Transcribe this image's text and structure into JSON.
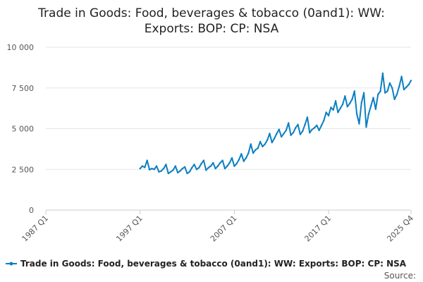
{
  "chart_data": {
    "type": "line",
    "title": "Trade in Goods: Food, beverages & tobacco (0and1): WW: Exports: BOP: CP: NSA",
    "title_lines": [
      "Trade in Goods: Food, beverages & tobacco (0and1): WW:",
      "Exports: BOP: CP: NSA"
    ],
    "xlabel": "",
    "ylabel": "",
    "ylim": [
      0,
      10000
    ],
    "yticks": [
      0,
      2500,
      5000,
      7500,
      10000
    ],
    "ytick_labels": [
      "0",
      "2 500",
      "5 000",
      "7 500",
      "10 000"
    ],
    "xlim": [
      1987.0,
      2025.75
    ],
    "xticks": [
      1987.0,
      1997.0,
      2007.0,
      2017.0,
      2025.75
    ],
    "xtick_labels": [
      "1987 Q1",
      "1997 Q1",
      "2007 Q1",
      "2017 Q1",
      "2025 Q4"
    ],
    "grid": true,
    "legend_position": "bottom",
    "series": [
      {
        "name": "Trade in Goods: Food, beverages & tobacco (0and1): WW: Exports: BOP: CP: NSA",
        "color": "#0a7fc2",
        "start": 1997.0,
        "step": 0.25,
        "values": [
          2550,
          2700,
          2620,
          3050,
          2480,
          2550,
          2500,
          2700,
          2350,
          2400,
          2550,
          2800,
          2250,
          2350,
          2450,
          2700,
          2300,
          2400,
          2550,
          2650,
          2250,
          2350,
          2600,
          2800,
          2500,
          2600,
          2850,
          3050,
          2450,
          2600,
          2700,
          2900,
          2550,
          2700,
          2900,
          3050,
          2550,
          2700,
          2900,
          3200,
          2700,
          2850,
          3100,
          3450,
          3000,
          3200,
          3500,
          4050,
          3500,
          3700,
          3800,
          4200,
          3900,
          4050,
          4300,
          4700,
          4150,
          4400,
          4700,
          4950,
          4500,
          4700,
          4900,
          5350,
          4600,
          4750,
          5050,
          5250,
          4650,
          4850,
          5250,
          5700,
          4750,
          4950,
          5050,
          5200,
          4900,
          5200,
          5500,
          6000,
          5800,
          6300,
          6150,
          6700,
          6000,
          6250,
          6500,
          7000,
          6350,
          6550,
          6800,
          7300,
          5900,
          5300,
          6600,
          7200,
          5100,
          5900,
          6400,
          6900,
          6200,
          7100,
          7300,
          8400,
          7200,
          7300,
          7800,
          7500,
          6800,
          7100,
          7600,
          8200,
          7400,
          7550,
          7700,
          7950
        ]
      }
    ]
  },
  "legend": {
    "label": "Trade in Goods: Food, beverages & tobacco (0and1): WW: Exports: BOP: CP: NSA"
  },
  "source": {
    "label": "Source:"
  }
}
